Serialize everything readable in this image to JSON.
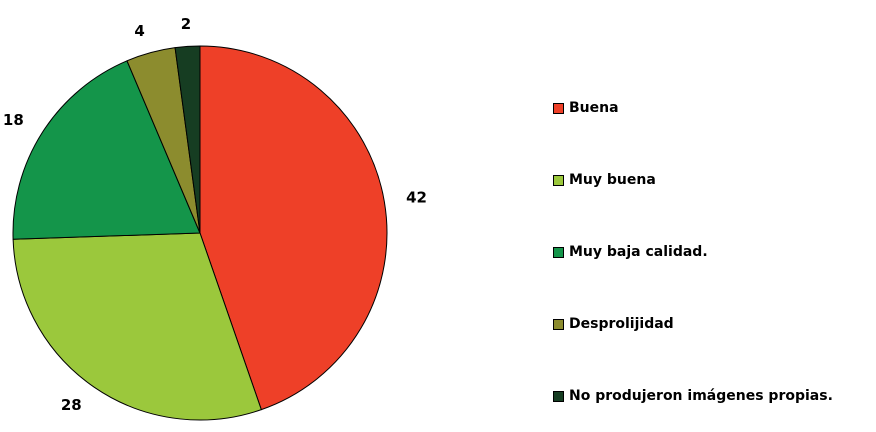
{
  "chart_data": {
    "type": "pie",
    "title": "",
    "legend_position": "right",
    "slices": [
      {
        "label": "Buena",
        "value": 42,
        "color": "#EE4028"
      },
      {
        "label": "Muy buena",
        "value": 28,
        "color": "#9BC83C"
      },
      {
        "label": "Muy baja calidad.",
        "value": 18,
        "color": "#14954A"
      },
      {
        "label": "Desprolijidad",
        "value": 4,
        "color": "#8C8C2E"
      },
      {
        "label": "No produjeron imágenes propias.",
        "value": 2,
        "color": "#163D22"
      }
    ]
  }
}
